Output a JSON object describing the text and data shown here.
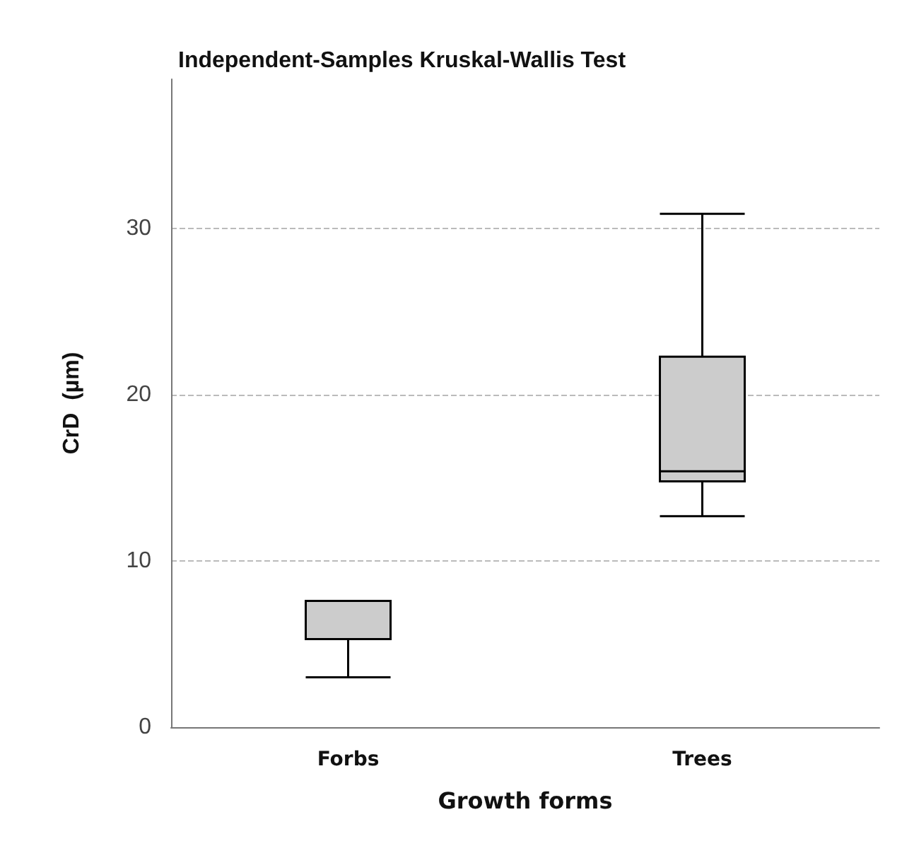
{
  "chart_data": {
    "type": "box",
    "title": "Independent-Samples Kruskal-Wallis Test",
    "xlabel": "Growth forms",
    "ylabel": "CrD  (µm)",
    "categories": [
      "Forbs",
      "Trees"
    ],
    "boxes": [
      {
        "low": 3.0,
        "q1": 5.3,
        "median": 7.6,
        "q3": 7.6,
        "high": 7.6
      },
      {
        "low": 12.7,
        "q1": 14.8,
        "median": 15.4,
        "q3": 22.3,
        "high": 30.9
      }
    ],
    "color": "#cccccc",
    "ylim": [
      0,
      39
    ],
    "yticks": [
      0,
      10,
      20,
      30
    ],
    "grid": "y"
  }
}
